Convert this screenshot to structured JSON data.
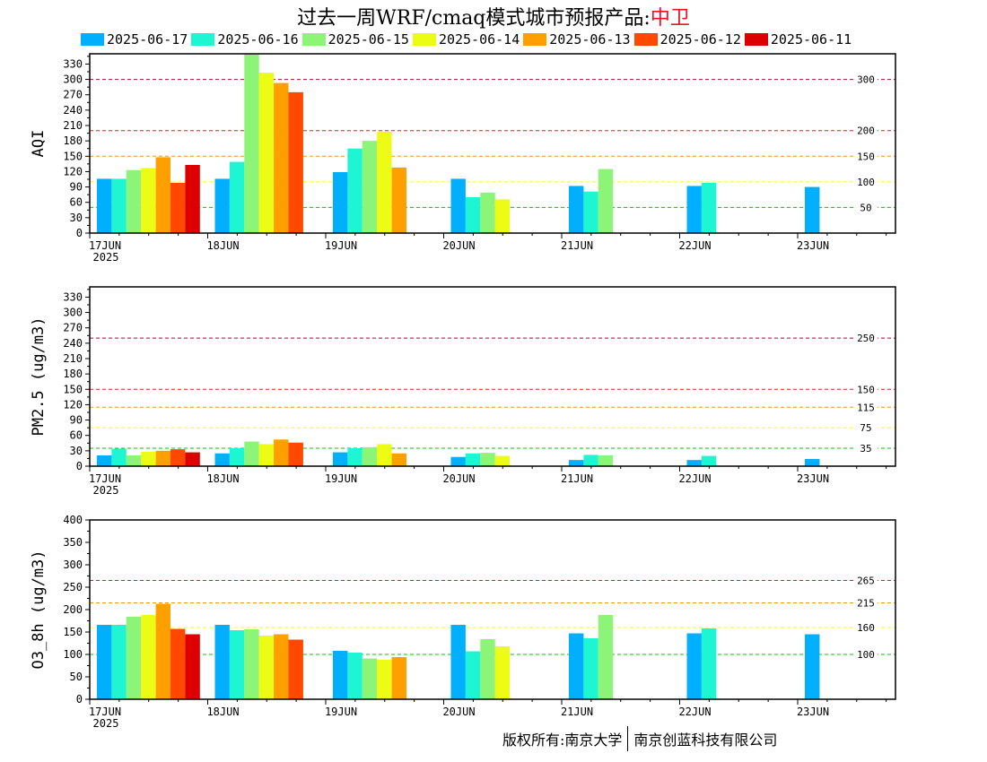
{
  "title": {
    "prefix": "过去一周WRF/cmaq模式城市预报产品:",
    "city": "中卫"
  },
  "legend": [
    {
      "label": "2025-06-17",
      "color": "#00b0ff"
    },
    {
      "label": "2025-06-16",
      "color": "#1ef5d2"
    },
    {
      "label": "2025-06-15",
      "color": "#8cf578"
    },
    {
      "label": "2025-06-14",
      "color": "#ecfc14"
    },
    {
      "label": "2025-06-13",
      "color": "#ffa000"
    },
    {
      "label": "2025-06-12",
      "color": "#ff4800"
    },
    {
      "label": "2025-06-11",
      "color": "#dc0000"
    }
  ],
  "credit": {
    "left": "版权所有:南京大学",
    "right": "南京创蓝科技有限公司"
  },
  "chart_data": [
    {
      "type": "bar",
      "ylabel": "AQI",
      "categories": [
        "17JUN",
        "18JUN",
        "19JUN",
        "20JUN",
        "21JUN",
        "22JUN",
        "23JUN"
      ],
      "year_label": "2025",
      "ylim": [
        0,
        350
      ],
      "yticks": [
        0,
        30,
        60,
        90,
        120,
        150,
        180,
        210,
        240,
        270,
        300,
        330
      ],
      "thresholds": [
        {
          "value": 300,
          "label": "300",
          "color": "#b4003c"
        },
        {
          "value": 200,
          "label": "200",
          "color": "#e61e1e"
        },
        {
          "value": 150,
          "label": "150",
          "color": "#ff9000"
        },
        {
          "value": 100,
          "label": "100",
          "color": "#ffff00"
        },
        {
          "value": 50,
          "label": "50",
          "color": "#00c800"
        }
      ],
      "series": [
        {
          "name": "2025-06-17",
          "values": [
            106,
            106,
            119,
            106,
            92,
            92,
            90
          ]
        },
        {
          "name": "2025-06-16",
          "values": [
            106,
            139,
            165,
            70,
            81,
            98,
            null
          ]
        },
        {
          "name": "2025-06-15",
          "values": [
            123,
            349,
            180,
            79,
            125,
            null,
            null
          ]
        },
        {
          "name": "2025-06-14",
          "values": [
            127,
            313,
            198,
            66,
            null,
            null,
            null
          ]
        },
        {
          "name": "2025-06-13",
          "values": [
            148,
            293,
            128,
            null,
            null,
            null,
            null
          ]
        },
        {
          "name": "2025-06-12",
          "values": [
            98,
            275,
            null,
            null,
            null,
            null,
            null
          ]
        },
        {
          "name": "2025-06-11",
          "values": [
            133,
            null,
            null,
            null,
            null,
            null,
            null
          ]
        }
      ]
    },
    {
      "type": "bar",
      "ylabel": "PM2.5 (ug/m3)",
      "categories": [
        "17JUN",
        "18JUN",
        "19JUN",
        "20JUN",
        "21JUN",
        "22JUN",
        "23JUN"
      ],
      "year_label": "2025",
      "ylim": [
        0,
        350
      ],
      "yticks": [
        0,
        30,
        60,
        90,
        120,
        150,
        180,
        210,
        240,
        270,
        300,
        330
      ],
      "thresholds": [
        {
          "value": 250,
          "label": "250",
          "color": "#b4003c"
        },
        {
          "value": 150,
          "label": "150",
          "color": "#e61e1e"
        },
        {
          "value": 115,
          "label": "115",
          "color": "#ff9000"
        },
        {
          "value": 75,
          "label": "75",
          "color": "#ffff00"
        },
        {
          "value": 35,
          "label": "35",
          "color": "#00c800"
        }
      ],
      "series": [
        {
          "name": "2025-06-17",
          "values": [
            21,
            25,
            27,
            18,
            12,
            12,
            14
          ]
        },
        {
          "name": "2025-06-16",
          "values": [
            34,
            35,
            35,
            25,
            22,
            20,
            null
          ]
        },
        {
          "name": "2025-06-15",
          "values": [
            21,
            48,
            37,
            26,
            21,
            null,
            null
          ]
        },
        {
          "name": "2025-06-14",
          "values": [
            28,
            43,
            43,
            20,
            null,
            null,
            null
          ]
        },
        {
          "name": "2025-06-13",
          "values": [
            30,
            52,
            25,
            null,
            null,
            null,
            null
          ]
        },
        {
          "name": "2025-06-12",
          "values": [
            33,
            46,
            null,
            null,
            null,
            null,
            null
          ]
        },
        {
          "name": "2025-06-11",
          "values": [
            27,
            null,
            null,
            null,
            null,
            null,
            null
          ]
        }
      ]
    },
    {
      "type": "bar",
      "ylabel": "O3_8h (ug/m3)",
      "categories": [
        "17JUN",
        "18JUN",
        "19JUN",
        "20JUN",
        "21JUN",
        "22JUN",
        "23JUN"
      ],
      "year_label": "2025",
      "ylim": [
        0,
        400
      ],
      "yticks": [
        0,
        50,
        100,
        150,
        200,
        250,
        300,
        350,
        400
      ],
      "thresholds": [
        {
          "value": 265,
          "label": "265",
          "color": "#e61e1e"
        },
        {
          "value": 215,
          "label": "215",
          "color": "#ff9000"
        },
        {
          "value": 160,
          "label": "160",
          "color": "#ffff00"
        },
        {
          "value": 100,
          "label": "100",
          "color": "#00c800"
        }
      ],
      "series": [
        {
          "name": "2025-06-17",
          "values": [
            166,
            166,
            108,
            166,
            147,
            147,
            145
          ]
        },
        {
          "name": "2025-06-16",
          "values": [
            166,
            154,
            104,
            107,
            136,
            158,
            null
          ]
        },
        {
          "name": "2025-06-15",
          "values": [
            184,
            156,
            91,
            134,
            188,
            null,
            null
          ]
        },
        {
          "name": "2025-06-14",
          "values": [
            188,
            142,
            88,
            118,
            null,
            null,
            null
          ]
        },
        {
          "name": "2025-06-13",
          "values": [
            213,
            145,
            94,
            null,
            null,
            null,
            null
          ]
        },
        {
          "name": "2025-06-12",
          "values": [
            157,
            133,
            null,
            null,
            null,
            null,
            null
          ]
        },
        {
          "name": "2025-06-11",
          "values": [
            145,
            null,
            null,
            null,
            null,
            null,
            null
          ]
        }
      ]
    }
  ]
}
